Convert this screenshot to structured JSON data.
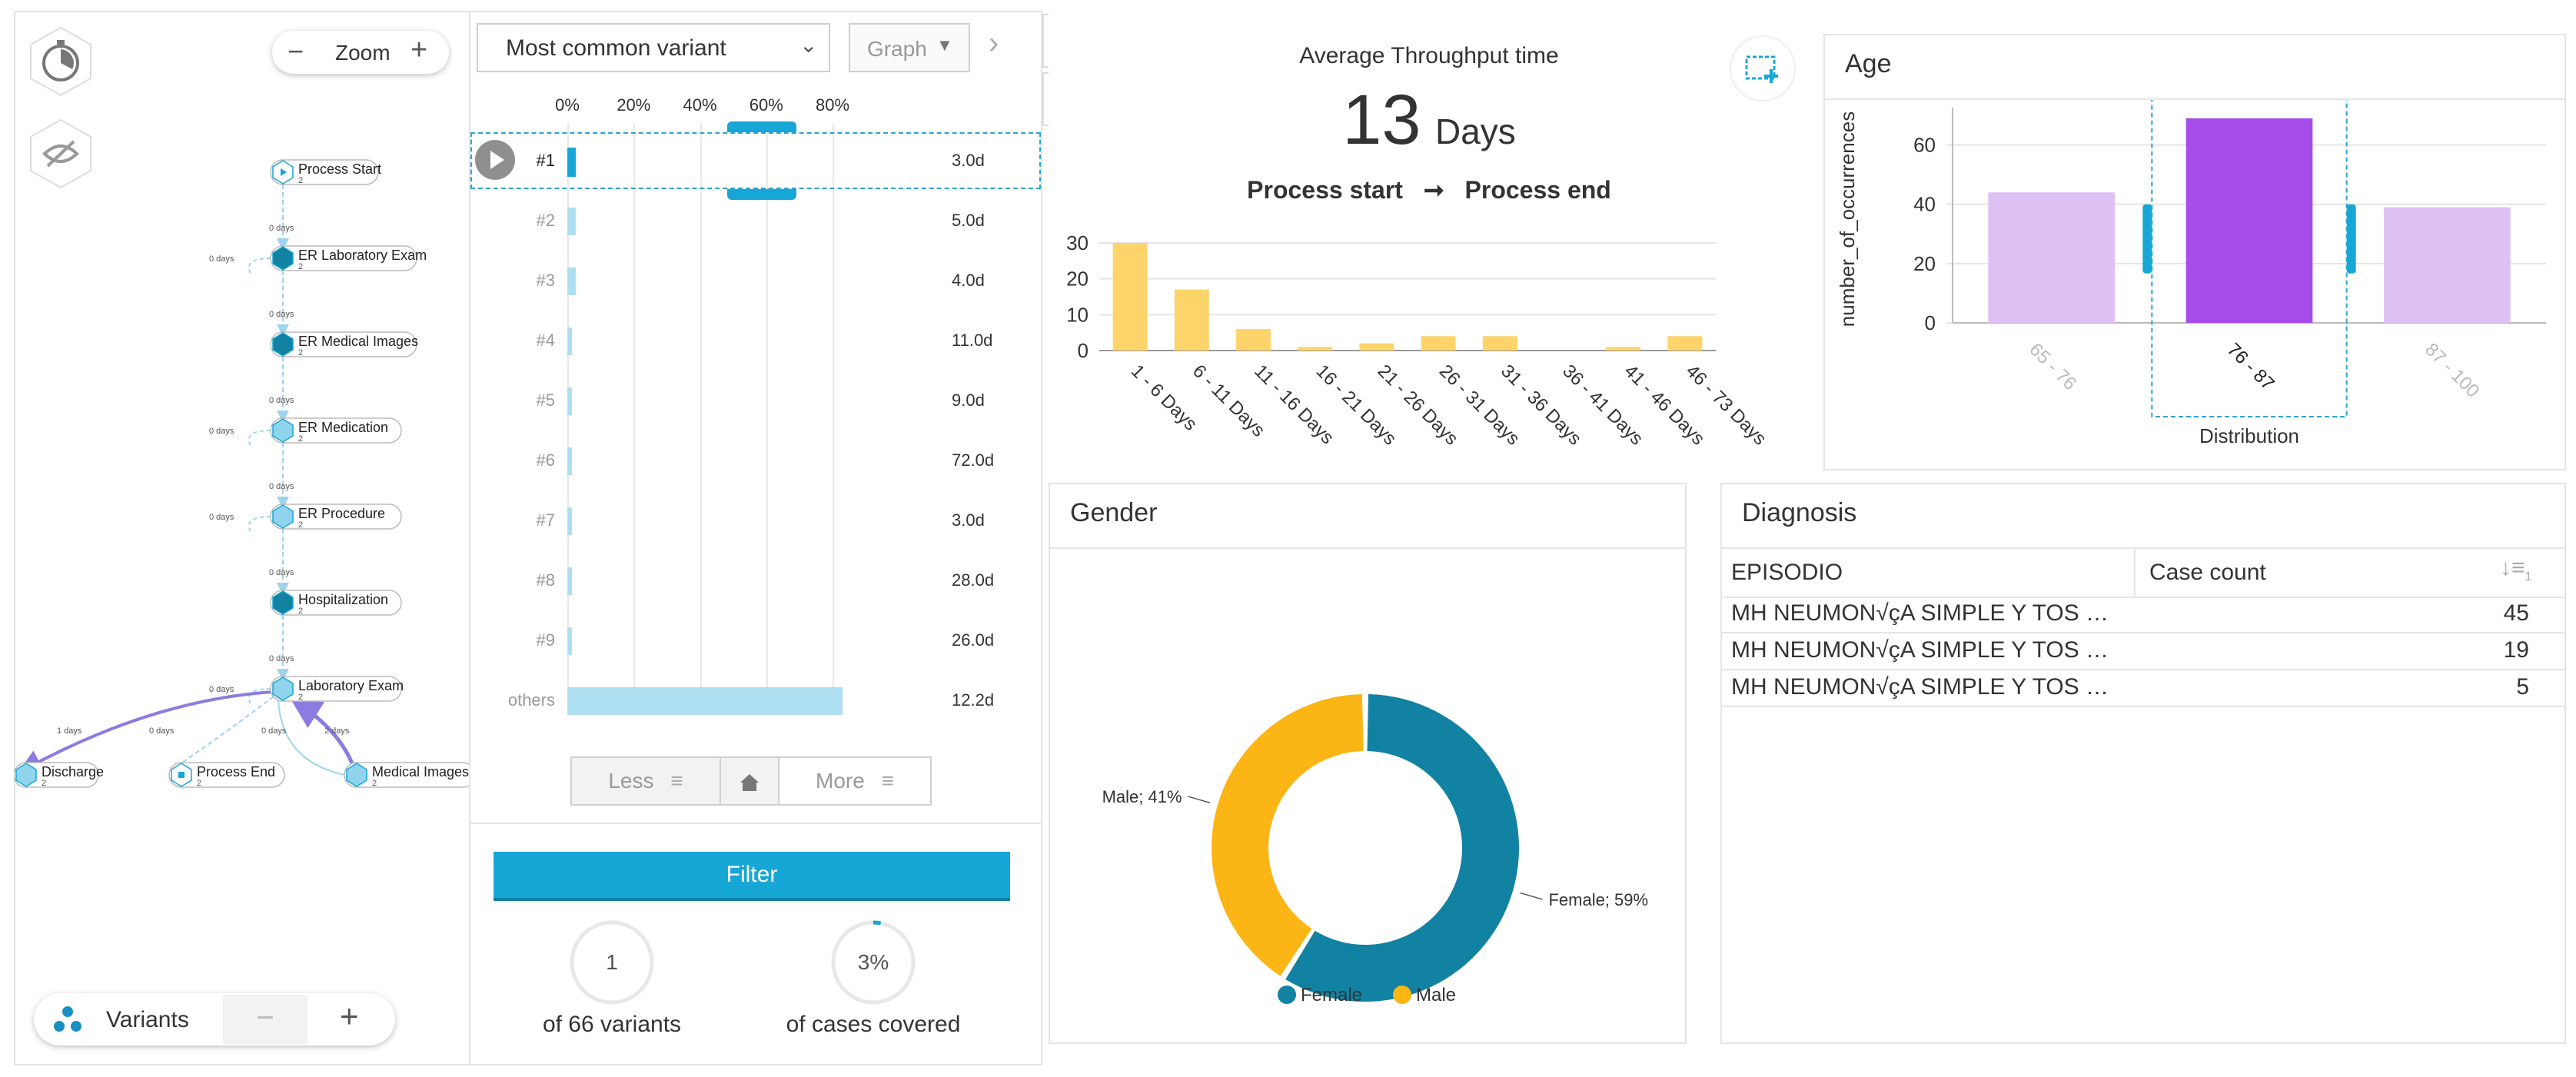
{
  "process_map": {
    "zoom_label": "Zoom",
    "variants_label": "Variants",
    "nodes": [
      {
        "label": "Process Start",
        "count": "2"
      },
      {
        "label": "ER Laboratory Exam",
        "count": "2"
      },
      {
        "label": "ER Medical Images",
        "count": "2"
      },
      {
        "label": "ER Medication",
        "count": "2"
      },
      {
        "label": "ER Procedure",
        "count": "2"
      },
      {
        "label": "Hospitalization",
        "count": "2"
      },
      {
        "label": "Laboratory Exam",
        "count": "2"
      },
      {
        "label": "Discharge",
        "count": "2"
      },
      {
        "label": "Process End",
        "count": "2"
      },
      {
        "label": "Medical Images",
        "count": "2"
      }
    ],
    "edge_labels": [
      "0 days",
      "0 days",
      "0 days",
      "0 days",
      "0 days",
      "0 days",
      "0 days",
      "0 days",
      "0 days",
      "0 days",
      "0 days",
      "1 days",
      "0 days",
      "0 days",
      "2 days"
    ]
  },
  "variants_panel": {
    "dropdown_value": "Most common variant",
    "view_value": "Graph",
    "axis_ticks": [
      "0%",
      "20%",
      "40%",
      "60%",
      "80%"
    ],
    "rows": [
      {
        "label": "#1",
        "pct": 2.5,
        "dur": "3.0d"
      },
      {
        "label": "#2",
        "pct": 2.5,
        "dur": "5.0d"
      },
      {
        "label": "#3",
        "pct": 2.5,
        "dur": "4.0d"
      },
      {
        "label": "#4",
        "pct": 1.5,
        "dur": "11.0d"
      },
      {
        "label": "#5",
        "pct": 1.5,
        "dur": "9.0d"
      },
      {
        "label": "#6",
        "pct": 1.5,
        "dur": "72.0d"
      },
      {
        "label": "#7",
        "pct": 1.5,
        "dur": "3.0d"
      },
      {
        "label": "#8",
        "pct": 1.5,
        "dur": "28.0d"
      },
      {
        "label": "#9",
        "pct": 1.5,
        "dur": "26.0d"
      },
      {
        "label": "others",
        "pct": 83,
        "dur": "12.2d"
      }
    ],
    "less_label": "Less",
    "more_label": "More",
    "filter_label": "Filter",
    "variant_count": "1",
    "variant_count_caption": "of 66 variants",
    "coverage": "3%",
    "coverage_caption": "of cases covered",
    "coverage_fraction": 0.03
  },
  "throughput": {
    "title": "Average Throughput time",
    "value": "13",
    "unit": "Days",
    "from": "Process start",
    "arrow": "➞",
    "to": "Process end"
  },
  "age": {
    "title": "Age",
    "xlabel": "Distribution"
  },
  "gender": {
    "title": "Gender",
    "legend": [
      "Female",
      "Male"
    ],
    "slice_labels": [
      "Female; 59%",
      "Male; 41%"
    ]
  },
  "diagnosis": {
    "title": "Diagnosis",
    "col1": "EPISODIO",
    "col2": "Case count",
    "sort_icon_text": "1",
    "rows": [
      {
        "name": "MH NEUMON√çA SIMPLE Y TOS …",
        "count": "45"
      },
      {
        "name": "MH NEUMON√çA SIMPLE Y TOS …",
        "count": "19"
      },
      {
        "name": "MH NEUMON√çA SIMPLE Y TOS …",
        "count": "5"
      }
    ]
  },
  "colors": {
    "accent": "#17a7d6",
    "teal": "#1282a2",
    "yellow": "#fbb514",
    "bar_yellow": "#fcd46a",
    "purple": "#a64ce8",
    "lavender": "#dfc0f5",
    "light_blue": "#aedff0"
  },
  "chart_data": [
    {
      "type": "bar",
      "title": "Average Throughput time",
      "categories": [
        "1 - 6 Days",
        "6 - 11 Days",
        "11 - 16 Days",
        "16 - 21 Days",
        "21 - 26 Days",
        "26 - 31 Days",
        "31 - 36 Days",
        "36 - 41 Days",
        "41 - 46 Days",
        "46 - 73 Days"
      ],
      "values": [
        30,
        17,
        6,
        1,
        2,
        4,
        4,
        0,
        1,
        4
      ],
      "yticks": [
        "0",
        "10",
        "20",
        "30"
      ],
      "ylim": [
        0,
        30
      ],
      "grid": true
    },
    {
      "type": "bar",
      "title": "Age",
      "categories": [
        "65 - 76",
        "76 - 87",
        "87 - 100"
      ],
      "values": [
        44,
        69,
        39
      ],
      "xlabel": "Distribution",
      "ylabel": "number_of_occurrences",
      "yticks": [
        "0",
        "20",
        "40",
        "60"
      ],
      "ylim": [
        0,
        70
      ],
      "selected": "76 - 87",
      "grid": true
    },
    {
      "type": "pie",
      "title": "Gender",
      "categories": [
        "Female",
        "Male"
      ],
      "values": [
        59,
        41
      ],
      "legend": "bottom"
    }
  ]
}
